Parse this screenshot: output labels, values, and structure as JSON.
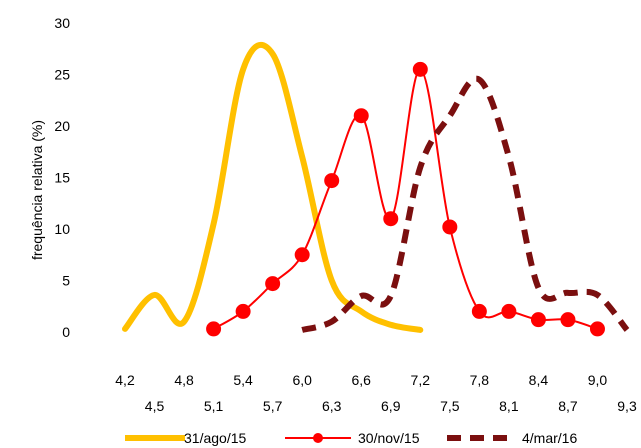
{
  "chart_data": {
    "type": "line",
    "title": "",
    "xlabel": "",
    "ylabel": "frequência relativa (%)",
    "xlim": [
      4.2,
      9.3
    ],
    "ylim": [
      0,
      30
    ],
    "x_ticks_upper": [
      "4,2",
      "4,8",
      "5,4",
      "6,0",
      "6,6",
      "7,2",
      "7,8",
      "8,4",
      "9,0"
    ],
    "x_ticks_lower": [
      "4,5",
      "5,1",
      "5,7",
      "6,3",
      "6,9",
      "7,5",
      "8,1",
      "8,7",
      "9,3"
    ],
    "y_ticks": [
      "0",
      "5",
      "10",
      "15",
      "20",
      "25",
      "30"
    ],
    "grid": false,
    "legend_position": "bottom",
    "series": [
      {
        "name": "31/ago/15",
        "color": "#FFC000",
        "style": "solid-thick",
        "markers": false,
        "x": [
          4.2,
          4.5,
          4.8,
          5.1,
          5.4,
          5.7,
          6.0,
          6.3,
          6.6,
          6.9,
          7.2
        ],
        "y": [
          0.3,
          3.6,
          1.0,
          10.5,
          25.5,
          27.0,
          17.0,
          5.0,
          2.0,
          0.7,
          0.2
        ]
      },
      {
        "name": "30/nov/15",
        "color": "#FF0000",
        "style": "solid-markers",
        "markers": true,
        "x": [
          5.1,
          5.4,
          5.7,
          6.0,
          6.3,
          6.6,
          6.9,
          7.2,
          7.5,
          7.8,
          8.1,
          8.4,
          8.7,
          9.0
        ],
        "y": [
          0.3,
          2.0,
          4.7,
          7.5,
          14.7,
          21.0,
          11.0,
          25.5,
          10.2,
          2.0,
          2.0,
          1.2,
          1.2,
          0.3
        ]
      },
      {
        "name": "4/mar/16",
        "color": "#7B0F0F",
        "style": "dashed-thick",
        "markers": false,
        "x": [
          6.0,
          6.3,
          6.6,
          6.9,
          7.2,
          7.5,
          7.8,
          8.1,
          8.4,
          8.7,
          9.0,
          9.3
        ],
        "y": [
          0.2,
          1.0,
          3.5,
          3.5,
          16.0,
          21.0,
          24.5,
          17.0,
          4.3,
          3.8,
          3.6,
          0.2
        ]
      }
    ]
  }
}
